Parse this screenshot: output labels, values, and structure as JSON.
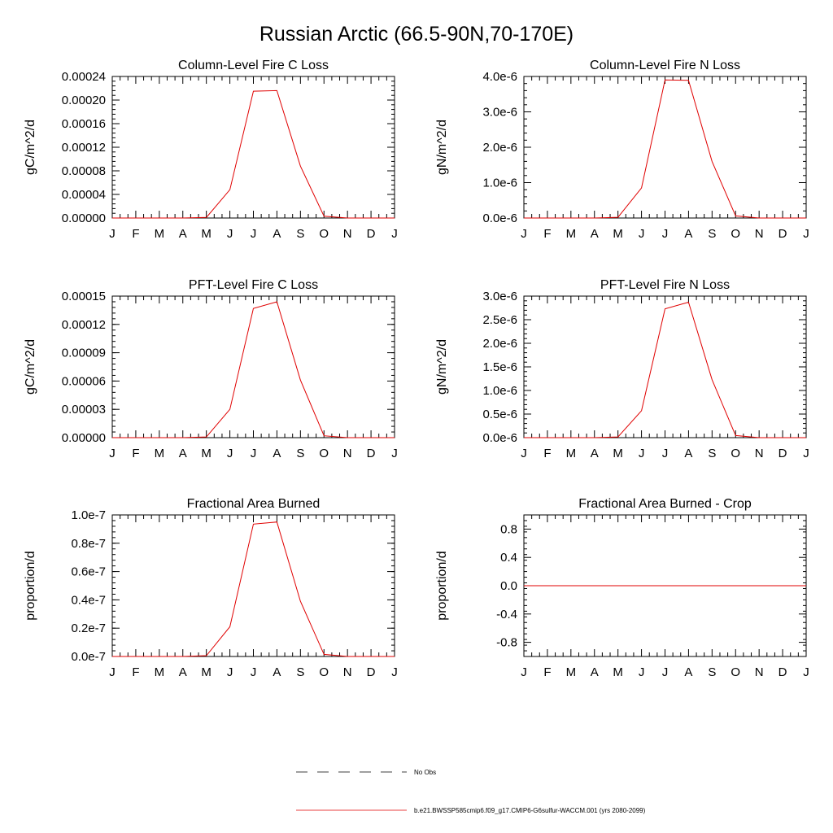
{
  "figure_title": "Russian Arctic (66.5-90N,70-170E)",
  "month_labels": [
    "J",
    "F",
    "M",
    "A",
    "M",
    "J",
    "J",
    "A",
    "S",
    "O",
    "N",
    "D",
    "J"
  ],
  "legend": {
    "obs_label": "No Obs",
    "model_label": "b.e21.BWSSP585cmip6.f09_g17.CMIP6-G6sulfur-WACCM.001 (yrs 2080-2099)",
    "obs_color": "#000000",
    "model_color": "#e00000"
  },
  "chart_data": [
    {
      "type": "line",
      "title": "Column-Level Fire C Loss",
      "ylabel": "gC/m^2/d",
      "ylim": [
        0,
        0.00024
      ],
      "yticks": [
        0,
        4e-05,
        8e-05,
        0.00012,
        0.00016,
        0.0002,
        0.00024
      ],
      "ytick_labels": [
        "0.00000",
        "0.00004",
        "0.00008",
        "0.00012",
        "0.00016",
        "0.00020",
        "0.00024"
      ],
      "x": [
        "J",
        "F",
        "M",
        "A",
        "M",
        "J",
        "J",
        "A",
        "S",
        "O",
        "N",
        "D",
        "J"
      ],
      "series": [
        {
          "values": [
            0,
            0,
            0,
            0,
            1e-06,
            4.8e-05,
            0.000215,
            0.000216,
            8.8e-05,
            3e-06,
            0,
            0,
            0
          ],
          "color": "#e00000"
        }
      ]
    },
    {
      "type": "line",
      "title": "Column-Level Fire N Loss",
      "ylabel": "gN/m^2/d",
      "ylim": [
        0,
        4e-06
      ],
      "yticks": [
        0,
        1e-06,
        2e-06,
        3e-06,
        4e-06
      ],
      "ytick_labels": [
        "0.0e-6",
        "1.0e-6",
        "2.0e-6",
        "3.0e-6",
        "4.0e-6"
      ],
      "x": [
        "J",
        "F",
        "M",
        "A",
        "M",
        "J",
        "J",
        "A",
        "S",
        "O",
        "N",
        "D",
        "J"
      ],
      "series": [
        {
          "values": [
            0,
            0,
            0,
            0,
            2e-08,
            8.5e-07,
            3.9e-06,
            3.89e-06,
            1.6e-06,
            6e-08,
            0,
            0,
            0
          ],
          "color": "#e00000"
        }
      ]
    },
    {
      "type": "line",
      "title": "PFT-Level Fire C Loss",
      "ylabel": "gC/m^2/d",
      "ylim": [
        0,
        0.00015
      ],
      "yticks": [
        0,
        3e-05,
        6e-05,
        9e-05,
        0.00012,
        0.00015
      ],
      "ytick_labels": [
        "0.00000",
        "0.00003",
        "0.00006",
        "0.00009",
        "0.00012",
        "0.00015"
      ],
      "x": [
        "J",
        "F",
        "M",
        "A",
        "M",
        "J",
        "J",
        "A",
        "S",
        "O",
        "N",
        "D",
        "J"
      ],
      "series": [
        {
          "values": [
            0,
            0,
            0,
            0,
            8e-07,
            3e-05,
            0.000137,
            0.000144,
            6.1e-05,
            2e-06,
            0,
            0,
            0
          ],
          "color": "#e00000"
        }
      ]
    },
    {
      "type": "line",
      "title": "PFT-Level Fire N Loss",
      "ylabel": "gN/m^2/d",
      "ylim": [
        0,
        3e-06
      ],
      "yticks": [
        0,
        5e-07,
        1e-06,
        1.5e-06,
        2e-06,
        2.5e-06,
        3e-06
      ],
      "ytick_labels": [
        "0.0e-6",
        "0.5e-6",
        "1.0e-6",
        "1.5e-6",
        "2.0e-6",
        "2.5e-6",
        "3.0e-6"
      ],
      "x": [
        "J",
        "F",
        "M",
        "A",
        "M",
        "J",
        "J",
        "A",
        "S",
        "O",
        "N",
        "D",
        "J"
      ],
      "series": [
        {
          "values": [
            0,
            0,
            0,
            0,
            1.5e-08,
            5.7e-07,
            2.73e-06,
            2.87e-06,
            1.23e-06,
            4.5e-08,
            0,
            0,
            0
          ],
          "color": "#e00000"
        }
      ]
    },
    {
      "type": "line",
      "title": "Fractional Area Burned",
      "ylabel": "proportion/d",
      "ylim": [
        0,
        1e-07
      ],
      "yticks": [
        0,
        2e-08,
        4e-08,
        6e-08,
        8e-08,
        1e-07
      ],
      "ytick_labels": [
        "0.0e-7",
        "0.2e-7",
        "0.4e-7",
        "0.6e-7",
        "0.8e-7",
        "1.0e-7"
      ],
      "x": [
        "J",
        "F",
        "M",
        "A",
        "M",
        "J",
        "J",
        "A",
        "S",
        "O",
        "N",
        "D",
        "J"
      ],
      "series": [
        {
          "values": [
            0,
            0,
            0,
            0,
            6e-10,
            2.1e-08,
            9.35e-08,
            9.5e-08,
            3.9e-08,
            1.5e-09,
            0,
            0,
            0
          ],
          "color": "#e00000"
        }
      ]
    },
    {
      "type": "line",
      "title": "Fractional Area Burned - Crop",
      "ylabel": "proportion/d",
      "ylim": [
        -1,
        1
      ],
      "yticks": [
        -0.8,
        -0.4,
        0.0,
        0.4,
        0.8
      ],
      "ytick_labels": [
        "-0.8",
        "-0.4",
        "0.0",
        "0.4",
        "0.8"
      ],
      "x": [
        "J",
        "F",
        "M",
        "A",
        "M",
        "J",
        "J",
        "A",
        "S",
        "O",
        "N",
        "D",
        "J"
      ],
      "series": [
        {
          "values": [
            0,
            0,
            0,
            0,
            0,
            0,
            0,
            0,
            0,
            0,
            0,
            0,
            0
          ],
          "color": "#e00000"
        }
      ]
    }
  ]
}
